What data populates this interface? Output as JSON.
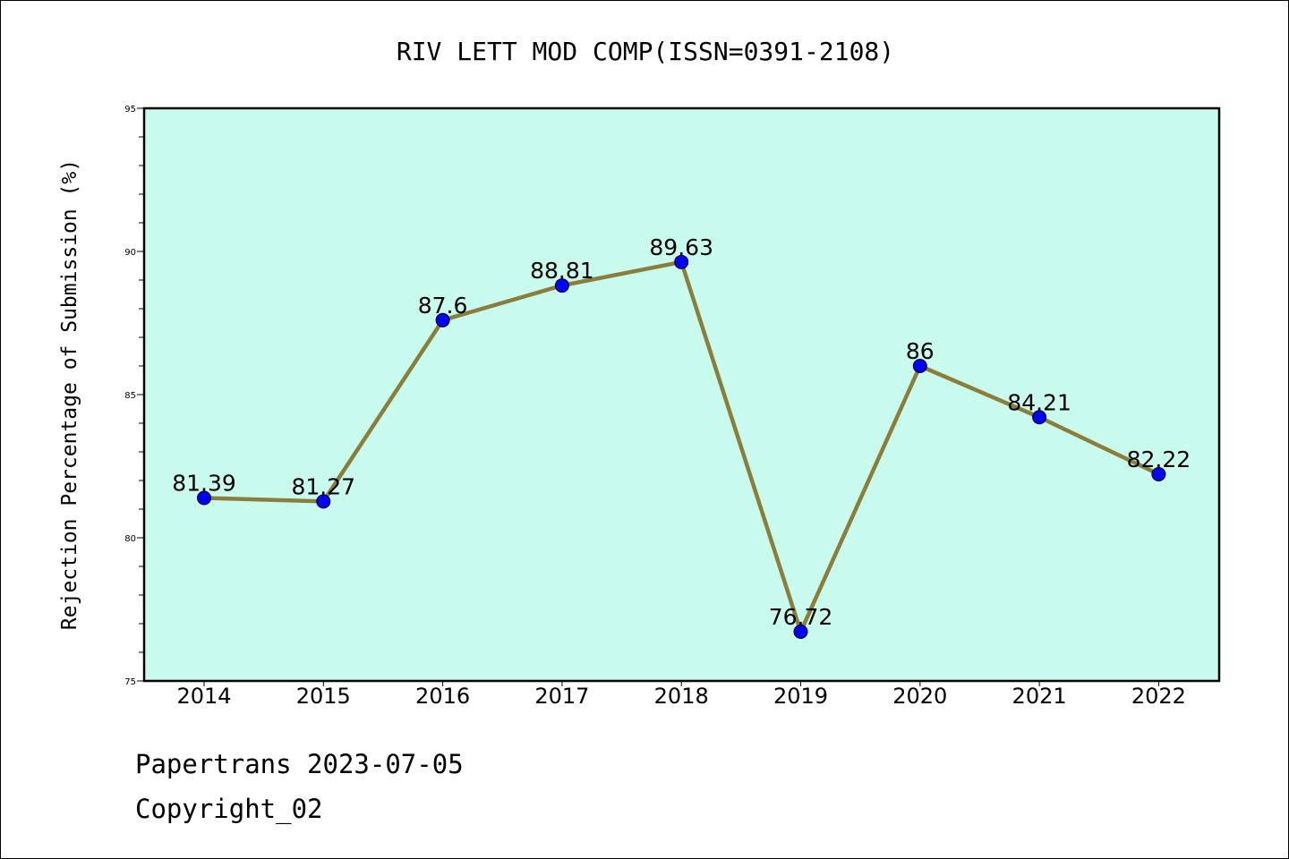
{
  "chart_data": {
    "type": "line",
    "title": "RIV LETT MOD COMP(ISSN=0391-2108)",
    "ylabel": "Rejection Percentage of Submission (%)",
    "xlabel": "",
    "categories": [
      "2014",
      "2015",
      "2016",
      "2017",
      "2018",
      "2019",
      "2020",
      "2021",
      "2022"
    ],
    "values": [
      81.39,
      81.27,
      87.6,
      88.81,
      89.63,
      76.72,
      86,
      84.21,
      82.22
    ],
    "data_labels": [
      "81.39",
      "81.27",
      "87.6",
      "88.81",
      "89.63",
      "76.72",
      "86",
      "84.21",
      "82.22"
    ],
    "ylim": [
      75,
      95
    ],
    "yticks": [
      "75",
      "80",
      "85",
      "90",
      "95"
    ],
    "grid": false,
    "colors": {
      "plot_background": "#c8fbee",
      "line": "#8b7d3a",
      "marker": "#0000ff"
    }
  },
  "footer": {
    "line1": "Papertrans 2023-07-05",
    "line2": "Copyright_02"
  }
}
